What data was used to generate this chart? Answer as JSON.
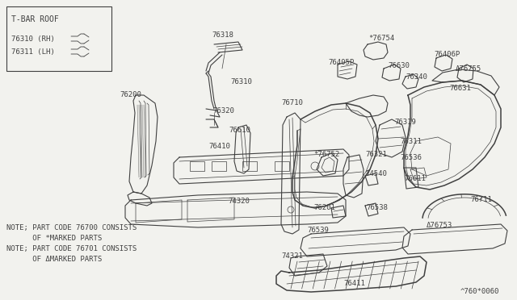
{
  "bg_color": "#f2f2ee",
  "line_color": "#404040",
  "diagram_code": "^760*0060",
  "box_title": "T-BAR ROOF",
  "box_items": [
    "76310 (RH)",
    "76311 (LH)"
  ],
  "notes": [
    "NOTE; PART CODE 76700 CONSISTS",
    "      OF *MARKED PARTS",
    "NOTE; PART CODE 76701 CONSISTS",
    "      OF ΔMARKED PARTS"
  ],
  "fig_w": 6.4,
  "fig_h": 3.72,
  "dpi": 100
}
